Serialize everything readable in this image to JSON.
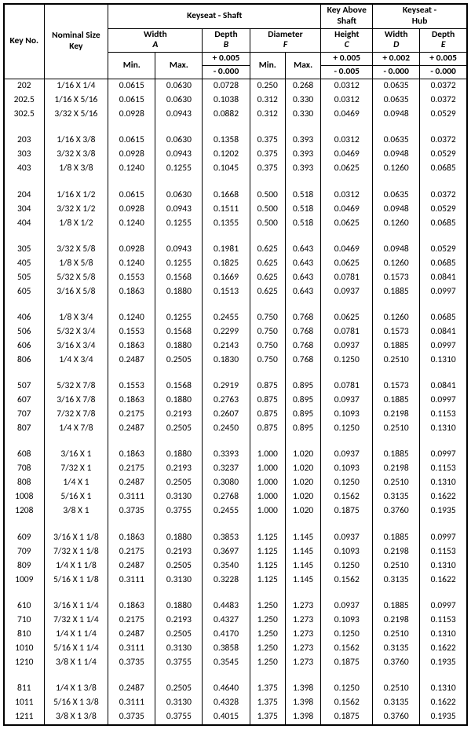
{
  "headers": {
    "keyno": "Key No.",
    "nom": "Nominal Size\nKey",
    "keyseat_shaft": "Keyseat - Shaft",
    "key_above": "Key Above\nShaft",
    "keyseat_hub": "Keyseat -\nHub",
    "width_A": "Width",
    "A_let": "A",
    "depth_B": "Depth",
    "B_let": "B",
    "dia_F": "Diameter",
    "F_let": "F",
    "height_C": "Height",
    "C_let": "C",
    "width_D": "Width",
    "D_let": "D",
    "depth_E": "Depth",
    "E_let": "E",
    "min": "Min.",
    "max": "Max.",
    "tol_p005": "+ 0.005",
    "tol_m000": "- 0.000",
    "tol_m005": "- 0.005",
    "tol_p002": "+ 0.002"
  },
  "groups": [
    [
      {
        "k": "202",
        "n": "1/16 X 1/4",
        "am": "0.0615",
        "ax": "0.0630",
        "b": "0.0728",
        "fm": "0.250",
        "fx": "0.268",
        "c": "0.0312",
        "d": "0.0635",
        "e": "0.0372"
      },
      {
        "k": "202.5",
        "n": "1/16 X 5/16",
        "am": "0.0615",
        "ax": "0.0630",
        "b": "0.1038",
        "fm": "0.312",
        "fx": "0.330",
        "c": "0.0312",
        "d": "0.0635",
        "e": "0.0372"
      },
      {
        "k": "302.5",
        "n": "3/32 X 5/16",
        "am": "0.0928",
        "ax": "0.0943",
        "b": "0.0882",
        "fm": "0.312",
        "fx": "0.330",
        "c": "0.0469",
        "d": "0.0948",
        "e": "0.0529"
      }
    ],
    [
      {
        "k": "203",
        "n": "1/16 X 3/8",
        "am": "0.0615",
        "ax": "0.0630",
        "b": "0.1358",
        "fm": "0.375",
        "fx": "0.393",
        "c": "0.0312",
        "d": "0.0635",
        "e": "0.0372"
      },
      {
        "k": "303",
        "n": "3/32 X 3/8",
        "am": "0.0928",
        "ax": "0.0943",
        "b": "0.1202",
        "fm": "0.375",
        "fx": "0.393",
        "c": "0.0469",
        "d": "0.0948",
        "e": "0.0529"
      },
      {
        "k": "403",
        "n": "1/8 X 3/8",
        "am": "0.1240",
        "ax": "0.1255",
        "b": "0.1045",
        "fm": "0.375",
        "fx": "0.393",
        "c": "0.0625",
        "d": "0.1260",
        "e": "0.0685"
      }
    ],
    [
      {
        "k": "204",
        "n": "1/16 X 1/2",
        "am": "0.0615",
        "ax": "0.0630",
        "b": "0.1668",
        "fm": "0.500",
        "fx": "0.518",
        "c": "0.0312",
        "d": "0.0635",
        "e": "0.0372"
      },
      {
        "k": "304",
        "n": "3/32 X 1/2",
        "am": "0.0928",
        "ax": "0.0943",
        "b": "0.1511",
        "fm": "0.500",
        "fx": "0.518",
        "c": "0.0469",
        "d": "0.0948",
        "e": "0.0529"
      },
      {
        "k": "404",
        "n": "1/8 X 1/2",
        "am": "0.1240",
        "ax": "0.1255",
        "b": "0.1355",
        "fm": "0.500",
        "fx": "0.518",
        "c": "0.0625",
        "d": "0.1260",
        "e": "0.0685"
      }
    ],
    [
      {
        "k": "305",
        "n": "3/32 X 5/8",
        "am": "0.0928",
        "ax": "0.0943",
        "b": "0.1981",
        "fm": "0.625",
        "fx": "0.643",
        "c": "0.0469",
        "d": "0.0948",
        "e": "0.0529"
      },
      {
        "k": "405",
        "n": "1/8 X 5/8",
        "am": "0.1240",
        "ax": "0.1255",
        "b": "0.1825",
        "fm": "0.625",
        "fx": "0.643",
        "c": "0.0625",
        "d": "0.1260",
        "e": "0.0685"
      },
      {
        "k": "505",
        "n": "5/32 X 5/8",
        "am": "0.1553",
        "ax": "0.1568",
        "b": "0.1669",
        "fm": "0.625",
        "fx": "0.643",
        "c": "0.0781",
        "d": "0.1573",
        "e": "0.0841"
      },
      {
        "k": "605",
        "n": "3/16 X 5/8",
        "am": "0.1863",
        "ax": "0.1880",
        "b": "0.1513",
        "fm": "0.625",
        "fx": "0.643",
        "c": "0.0937",
        "d": "0.1885",
        "e": "0.0997"
      }
    ],
    [
      {
        "k": "406",
        "n": "1/8 X 3/4",
        "am": "0.1240",
        "ax": "0.1255",
        "b": "0.2455",
        "fm": "0.750",
        "fx": "0.768",
        "c": "0.0625",
        "d": "0.1260",
        "e": "0.0685"
      },
      {
        "k": "506",
        "n": "5/32 X 3/4",
        "am": "0.1553",
        "ax": "0.1568",
        "b": "0.2299",
        "fm": "0.750",
        "fx": "0.768",
        "c": "0.0781",
        "d": "0.1573",
        "e": "0.0841"
      },
      {
        "k": "606",
        "n": "3/16 X 3/4",
        "am": "0.1863",
        "ax": "0.1880",
        "b": "0.2143",
        "fm": "0.750",
        "fx": "0.768",
        "c": "0.0937",
        "d": "0.1885",
        "e": "0.0997"
      },
      {
        "k": "806",
        "n": "1/4 X 3/4",
        "am": "0.2487",
        "ax": "0.2505",
        "b": "0.1830",
        "fm": "0.750",
        "fx": "0.768",
        "c": "0.1250",
        "d": "0.2510",
        "e": "0.1310"
      }
    ],
    [
      {
        "k": "507",
        "n": "5/32 X 7/8",
        "am": "0.1553",
        "ax": "0.1568",
        "b": "0.2919",
        "fm": "0.875",
        "fx": "0.895",
        "c": "0.0781",
        "d": "0.1573",
        "e": "0.0841"
      },
      {
        "k": "607",
        "n": "3/16 X 7/8",
        "am": "0.1863",
        "ax": "0.1880",
        "b": "0.2763",
        "fm": "0.875",
        "fx": "0.895",
        "c": "0.0937",
        "d": "0.1885",
        "e": "0.0997"
      },
      {
        "k": "707",
        "n": "7/32 X 7/8",
        "am": "0.2175",
        "ax": "0.2193",
        "b": "0.2607",
        "fm": "0.875",
        "fx": "0.895",
        "c": "0.1093",
        "d": "0.2198",
        "e": "0.1153"
      },
      {
        "k": "807",
        "n": "1/4 X 7/8",
        "am": "0.2487",
        "ax": "0.2505",
        "b": "0.2450",
        "fm": "0.875",
        "fx": "0.895",
        "c": "0.1250",
        "d": "0.2510",
        "e": "0.1310"
      }
    ],
    [
      {
        "k": "608",
        "n": "3/16 X 1",
        "am": "0.1863",
        "ax": "0.1880",
        "b": "0.3393",
        "fm": "1.000",
        "fx": "1.020",
        "c": "0.0937",
        "d": "0.1885",
        "e": "0.0997"
      },
      {
        "k": "708",
        "n": "7/32 X 1",
        "am": "0.2175",
        "ax": "0.2193",
        "b": "0.3237",
        "fm": "1.000",
        "fx": "1.020",
        "c": "0.1093",
        "d": "0.2198",
        "e": "0.1153"
      },
      {
        "k": "808",
        "n": "1/4 X 1",
        "am": "0.2487",
        "ax": "0.2505",
        "b": "0.3080",
        "fm": "1.000",
        "fx": "1.020",
        "c": "0.1250",
        "d": "0.2510",
        "e": "0.1310"
      },
      {
        "k": "1008",
        "n": "5/16 X 1",
        "am": "0.3111",
        "ax": "0.3130",
        "b": "0.2768",
        "fm": "1.000",
        "fx": "1.020",
        "c": "0.1562",
        "d": "0.3135",
        "e": "0.1622"
      },
      {
        "k": "1208",
        "n": "3/8 X 1",
        "am": "0.3735",
        "ax": "0.3755",
        "b": "0.2455",
        "fm": "1.000",
        "fx": "1.020",
        "c": "0.1875",
        "d": "0.3760",
        "e": "0.1935"
      }
    ],
    [
      {
        "k": "609",
        "n": "3/16 X 1 1/8",
        "am": "0.1863",
        "ax": "0.1880",
        "b": "0.3853",
        "fm": "1.125",
        "fx": "1.145",
        "c": "0.0937",
        "d": "0.1885",
        "e": "0.0997"
      },
      {
        "k": "709",
        "n": "7/32 X 1 1/8",
        "am": "0.2175",
        "ax": "0.2193",
        "b": "0.3697",
        "fm": "1.125",
        "fx": "1.145",
        "c": "0.1093",
        "d": "0.2198",
        "e": "0.1153"
      },
      {
        "k": "809",
        "n": "1/4 X 1 1/8",
        "am": "0.2487",
        "ax": "0.2505",
        "b": "0.3540",
        "fm": "1.125",
        "fx": "1.145",
        "c": "0.1250",
        "d": "0.2510",
        "e": "0.1310"
      },
      {
        "k": "1009",
        "n": "5/16 X 1 1/8",
        "am": "0.3111",
        "ax": "0.3130",
        "b": "0.3228",
        "fm": "1.125",
        "fx": "1.145",
        "c": "0.1562",
        "d": "0.3135",
        "e": "0.1622"
      }
    ],
    [
      {
        "k": "610",
        "n": "3/16 X 1 1/4",
        "am": "0.1863",
        "ax": "0.1880",
        "b": "0.4483",
        "fm": "1.250",
        "fx": "1.273",
        "c": "0.0937",
        "d": "0.1885",
        "e": "0.0997"
      },
      {
        "k": "710",
        "n": "7/32 X 1 1/4",
        "am": "0.2175",
        "ax": "0.2193",
        "b": "0.4327",
        "fm": "1.250",
        "fx": "1.273",
        "c": "0.1093",
        "d": "0.2198",
        "e": "0.1153"
      },
      {
        "k": "810",
        "n": "1/4 X 1 1/4",
        "am": "0.2487",
        "ax": "0.2505",
        "b": "0.4170",
        "fm": "1.250",
        "fx": "1.273",
        "c": "0.1250",
        "d": "0.2510",
        "e": "0.1310"
      },
      {
        "k": "1010",
        "n": "5/16 X 1 1/4",
        "am": "0.3111",
        "ax": "0.3130",
        "b": "0.3858",
        "fm": "1.250",
        "fx": "1.273",
        "c": "0.1562",
        "d": "0.3135",
        "e": "0.1622"
      },
      {
        "k": "1210",
        "n": "3/8 X 1 1/4",
        "am": "0.3735",
        "ax": "0.3755",
        "b": "0.3545",
        "fm": "1.250",
        "fx": "1.273",
        "c": "0.1875",
        "d": "0.3760",
        "e": "0.1935"
      }
    ],
    [
      {
        "k": "811",
        "n": "1/4 X 1 3/8",
        "am": "0.2487",
        "ax": "0.2505",
        "b": "0.4640",
        "fm": "1.375",
        "fx": "1.398",
        "c": "0.1250",
        "d": "0.2510",
        "e": "0.1310"
      },
      {
        "k": "1011",
        "n": "5/16 X 1 3/8",
        "am": "0.3111",
        "ax": "0.3130",
        "b": "0.4328",
        "fm": "1.375",
        "fx": "1.398",
        "c": "0.1562",
        "d": "0.3135",
        "e": "0.1622"
      },
      {
        "k": "1211",
        "n": "3/8 X 1 3/8",
        "am": "0.3735",
        "ax": "0.3755",
        "b": "0.4015",
        "fm": "1.375",
        "fx": "1.398",
        "c": "0.1875",
        "d": "0.3760",
        "e": "0.1935"
      }
    ]
  ]
}
